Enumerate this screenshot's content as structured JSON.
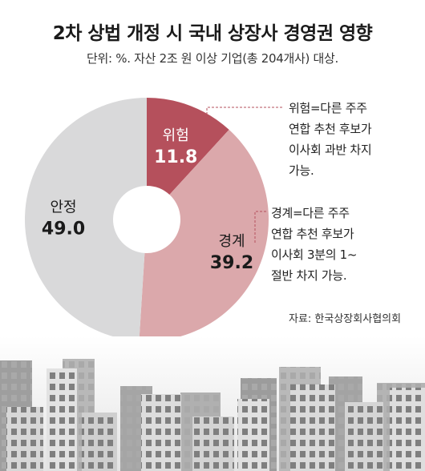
{
  "title": "2차 상법 개정 시 국내 상장사 경영권 영향",
  "subtitle": "단위: %.  자산 2조 원 이상 기업(총 204개사) 대상.",
  "notes": {
    "risk": "위험=다른 주주\n연합 추천 후보가\n이사회 과반 차지\n가능.",
    "caution": "경계=다른 주주\n연합 추천 후보가\n이사회 3분의 1~\n절반 차지 가능."
  },
  "source": "자료: 한국상장회사협의회",
  "colors": {
    "risk": "#b5505c",
    "caution": "#dba8ab",
    "stable": "#d9d9da",
    "note_line": "#b5505c"
  },
  "chart_data": {
    "type": "pie",
    "donut": true,
    "title": "2차 상법 개정 시 국내 상장사 경영권 영향",
    "unit": "%",
    "slices": [
      {
        "label": "위험",
        "value": 11.8,
        "display": "11.8"
      },
      {
        "label": "경계",
        "value": 39.2,
        "display": "39.2"
      },
      {
        "label": "안정",
        "value": 49.0,
        "display": "49.0"
      }
    ]
  }
}
